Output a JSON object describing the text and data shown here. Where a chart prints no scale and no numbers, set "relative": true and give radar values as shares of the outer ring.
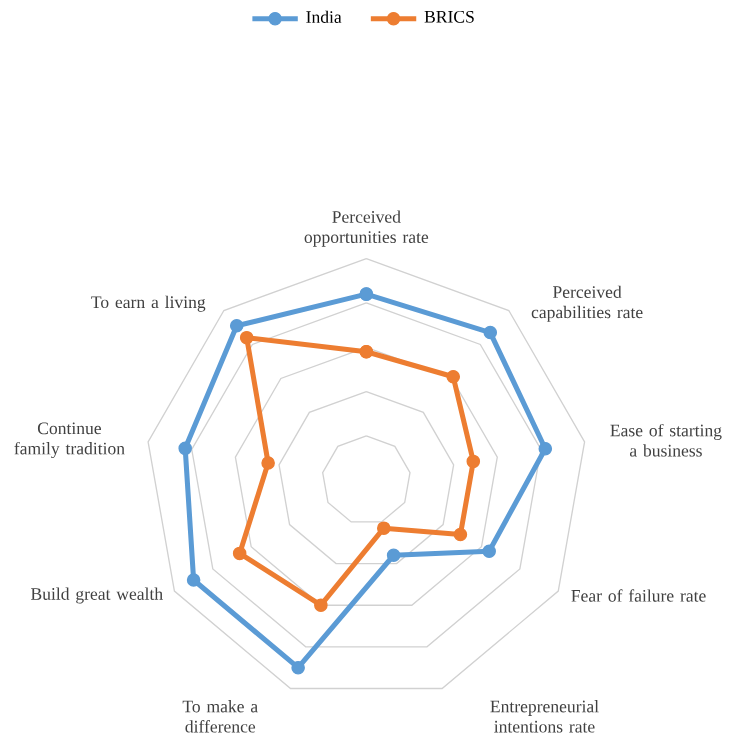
{
  "chart_data": {
    "type": "radar",
    "relative": true,
    "grid": true,
    "legend": "top",
    "marker": "circle",
    "line_style": "solid",
    "categories": [
      "Perceived opportunities rate",
      "Perceived capabilities rate",
      "Ease of starting a business",
      "Fear of failure rate",
      "Entrepreneurial intentions rate",
      "To make a difference",
      "Build great wealth",
      "Continue family tradition",
      "To earn a living"
    ],
    "series": [
      {
        "name": "India",
        "color": "#5b9bd5",
        "values": [
          0.84,
          0.87,
          0.82,
          0.64,
          0.36,
          0.9,
          0.9,
          0.83,
          0.91
        ]
      },
      {
        "name": "BRICS",
        "color": "#ed7d31",
        "values": [
          0.58,
          0.61,
          0.49,
          0.49,
          0.23,
          0.6,
          0.66,
          0.45,
          0.84
        ]
      }
    ]
  }
}
